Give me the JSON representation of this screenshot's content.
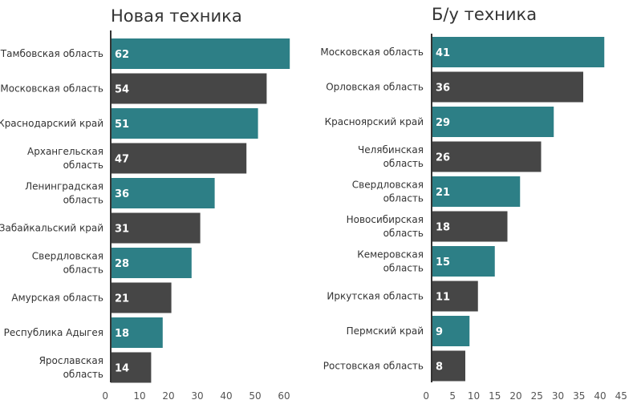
{
  "chart_data": [
    {
      "type": "bar",
      "orientation": "horizontal",
      "title": "Новая техника",
      "xlabel": "",
      "ylabel": "",
      "categories": [
        "Тамбовская область",
        "Московская область",
        "Краснодарский край",
        "Архангельская область",
        "Ленинградская область",
        "Забайкальский край",
        "Свердловская область",
        "Амурская область",
        "Республика Адыгея",
        "Ярославская область"
      ],
      "values": [
        62,
        54,
        51,
        47,
        36,
        31,
        28,
        21,
        18,
        14
      ],
      "colors": [
        "#2d7f86",
        "#464646",
        "#2d7f86",
        "#464646",
        "#2d7f86",
        "#464646",
        "#2d7f86",
        "#464646",
        "#2d7f86",
        "#464646"
      ],
      "xlim": [
        0,
        65
      ],
      "xticks": [
        0,
        10,
        20,
        30,
        40,
        50,
        60
      ],
      "grid": false,
      "legend": "none"
    },
    {
      "type": "bar",
      "orientation": "horizontal",
      "title": "Б/у техника",
      "xlabel": "",
      "ylabel": "",
      "categories": [
        "Московская область",
        "Орловская область",
        "Красноярский край",
        "Челябинская область",
        "Свердловская область",
        "Новосибирская область",
        "Кемеровская область",
        "Иркутская область",
        "Пермский край",
        "Ростовская область"
      ],
      "values": [
        41,
        36,
        29,
        26,
        21,
        18,
        15,
        11,
        9,
        8
      ],
      "colors": [
        "#2d7f86",
        "#464646",
        "#2d7f86",
        "#464646",
        "#2d7f86",
        "#464646",
        "#2d7f86",
        "#464646",
        "#2d7f86",
        "#464646"
      ],
      "xlim": [
        0,
        46
      ],
      "xticks": [
        0,
        5,
        10,
        15,
        20,
        25,
        30,
        35,
        40,
        45
      ],
      "grid": false,
      "legend": "none"
    }
  ]
}
